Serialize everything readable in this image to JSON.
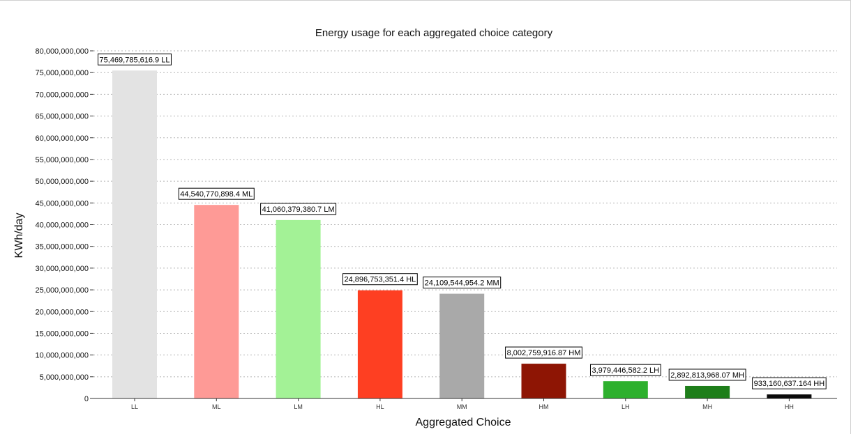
{
  "chart_data": {
    "type": "bar",
    "title": "Energy usage for each aggregated choice category",
    "xlabel": "Aggregated Choice",
    "ylabel": "KWh/day",
    "ylim": [
      0,
      80000000000
    ],
    "ytick_step": 5000000000,
    "yticks": [
      "0",
      "5,000,000,000",
      "10,000,000,000",
      "15,000,000,000",
      "20,000,000,000",
      "25,000,000,000",
      "30,000,000,000",
      "35,000,000,000",
      "40,000,000,000",
      "45,000,000,000",
      "50,000,000,000",
      "55,000,000,000",
      "60,000,000,000",
      "65,000,000,000",
      "70,000,000,000",
      "75,000,000,000",
      "80,000,000,000"
    ],
    "grid": "horizontal dashed",
    "legend": "none",
    "categories": [
      "LL",
      "ML",
      "LM",
      "HL",
      "MM",
      "HM",
      "LH",
      "MH",
      "HH"
    ],
    "values": [
      75469785616.9,
      44540770898.4,
      41060379380.7,
      24896753351.4,
      24109544954.2,
      8002759916.87,
      3979446582.2,
      2892813968.07,
      933160637.164
    ],
    "data_labels": [
      "75,469,785,616.9 LL",
      "44,540,770,898.4 ML",
      "41,060,379,380.7 LM",
      "24,896,753,351.4 HL",
      "24,109,544,954.2 MM",
      "8,002,759,916.87 HM",
      "3,979,446,582.2 LH",
      "2,892,813,968.07 MH",
      "933,160,637.164 HH"
    ],
    "colors": [
      "#e3e3e3",
      "#fe9a96",
      "#a3f296",
      "#fe3f22",
      "#a9a9a9",
      "#8e1504",
      "#2db02d",
      "#1e7e1a",
      "#0a0a0a"
    ]
  }
}
